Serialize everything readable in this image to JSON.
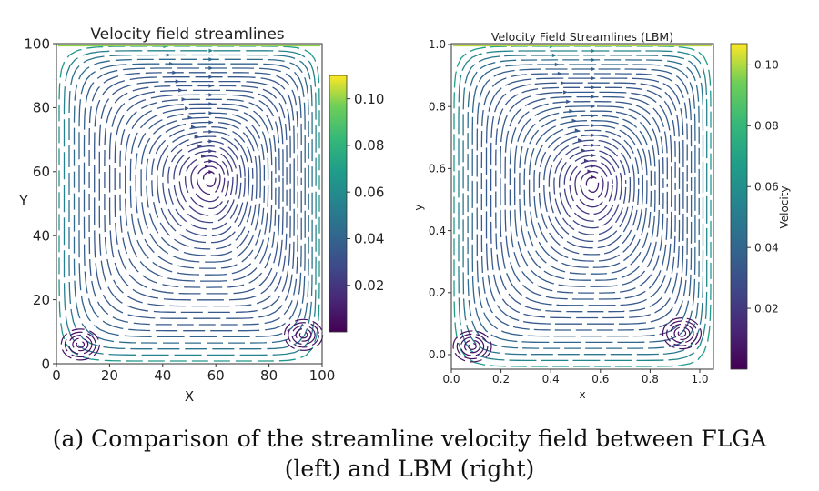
{
  "chart_data": [
    {
      "type": "streamplot",
      "title": "Velocity field streamlines",
      "xlabel": "X",
      "ylabel": "Y",
      "xlim": [
        0,
        100
      ],
      "ylim": [
        0,
        100
      ],
      "xticks": [
        "0",
        "20",
        "40",
        "60",
        "80",
        "100"
      ],
      "yticks": [
        "0",
        "20",
        "40",
        "60",
        "80",
        "100"
      ],
      "colorbar": {
        "label": "",
        "range": [
          0.0,
          0.11
        ],
        "ticks": [
          "0.02",
          "0.04",
          "0.06",
          "0.08",
          "0.10"
        ],
        "colormap": "viridis"
      },
      "vortices": [
        {
          "x": 58,
          "y": 58,
          "rotation": "clockwise",
          "kind": "primary"
        },
        {
          "x": 9,
          "y": 6,
          "rotation": "counterclockwise",
          "kind": "secondary"
        },
        {
          "x": 93,
          "y": 9,
          "rotation": "counterclockwise",
          "kind": "secondary"
        }
      ],
      "lid_velocity": 0.1
    },
    {
      "type": "streamplot",
      "title": "Velocity Field Streamlines (LBM)",
      "xlabel": "x",
      "ylabel": "y",
      "xlim": [
        0.0,
        1.0
      ],
      "ylim": [
        0.0,
        1.0
      ],
      "xticks": [
        "0.0",
        "0.2",
        "0.4",
        "0.6",
        "0.8",
        "1.0"
      ],
      "yticks": [
        "0.0",
        "0.2",
        "0.4",
        "0.6",
        "0.8",
        "1.0"
      ],
      "colorbar": {
        "label": "Velocity",
        "range": [
          0.0,
          0.107
        ],
        "ticks": [
          "0.02",
          "0.04",
          "0.06",
          "0.08",
          "0.10"
        ],
        "colormap": "viridis"
      },
      "vortices": [
        {
          "x": 0.54,
          "y": 0.57,
          "rotation": "clockwise",
          "kind": "primary"
        },
        {
          "x": 0.08,
          "y": 0.07,
          "rotation": "counterclockwise",
          "kind": "secondary"
        },
        {
          "x": 0.88,
          "y": 0.11,
          "rotation": "counterclockwise",
          "kind": "secondary"
        }
      ],
      "lid_velocity": 0.1
    }
  ],
  "caption": {
    "line1": "(a) Comparison of the streamline velocity field between FLGA",
    "line2": "(left) and LBM (right)"
  }
}
